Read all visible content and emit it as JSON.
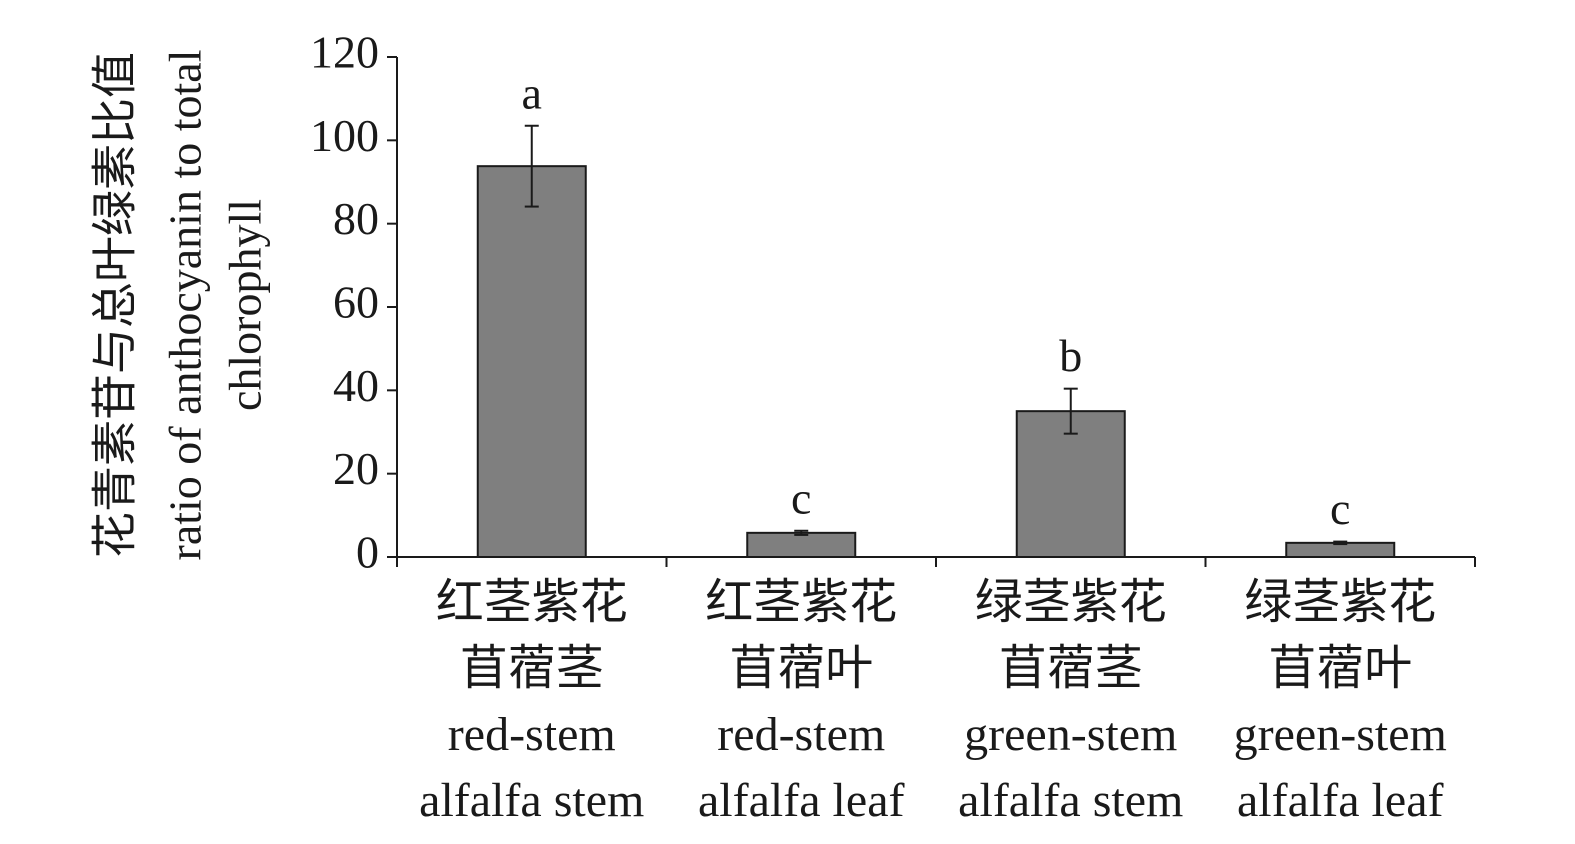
{
  "chart_data": {
    "type": "bar",
    "ylabel": [
      "花青素苷与总叶绿素比值",
      "ratio of anthocyanin to total",
      "chlorophyll"
    ],
    "categories": [
      [
        "红茎紫花",
        "苜蓿茎",
        "red-stem",
        "alfalfa stem"
      ],
      [
        "红茎紫花",
        "苜蓿叶",
        "red-stem",
        "alfalfa leaf"
      ],
      [
        "绿茎紫花",
        "苜蓿茎",
        "green-stem",
        "alfalfa stem"
      ],
      [
        "绿茎紫花",
        "苜蓿叶",
        "green-stem",
        "alfalfa leaf"
      ]
    ],
    "values": [
      93.8,
      5.8,
      35.0,
      3.4
    ],
    "errors": [
      9.7,
      0.5,
      5.4,
      0.3
    ],
    "significance": [
      "a",
      "c",
      "b",
      "c"
    ],
    "color": "#7f7f7f",
    "ylim": [
      0,
      120
    ],
    "yticks": [
      0,
      20,
      40,
      60,
      80,
      100,
      120
    ]
  }
}
